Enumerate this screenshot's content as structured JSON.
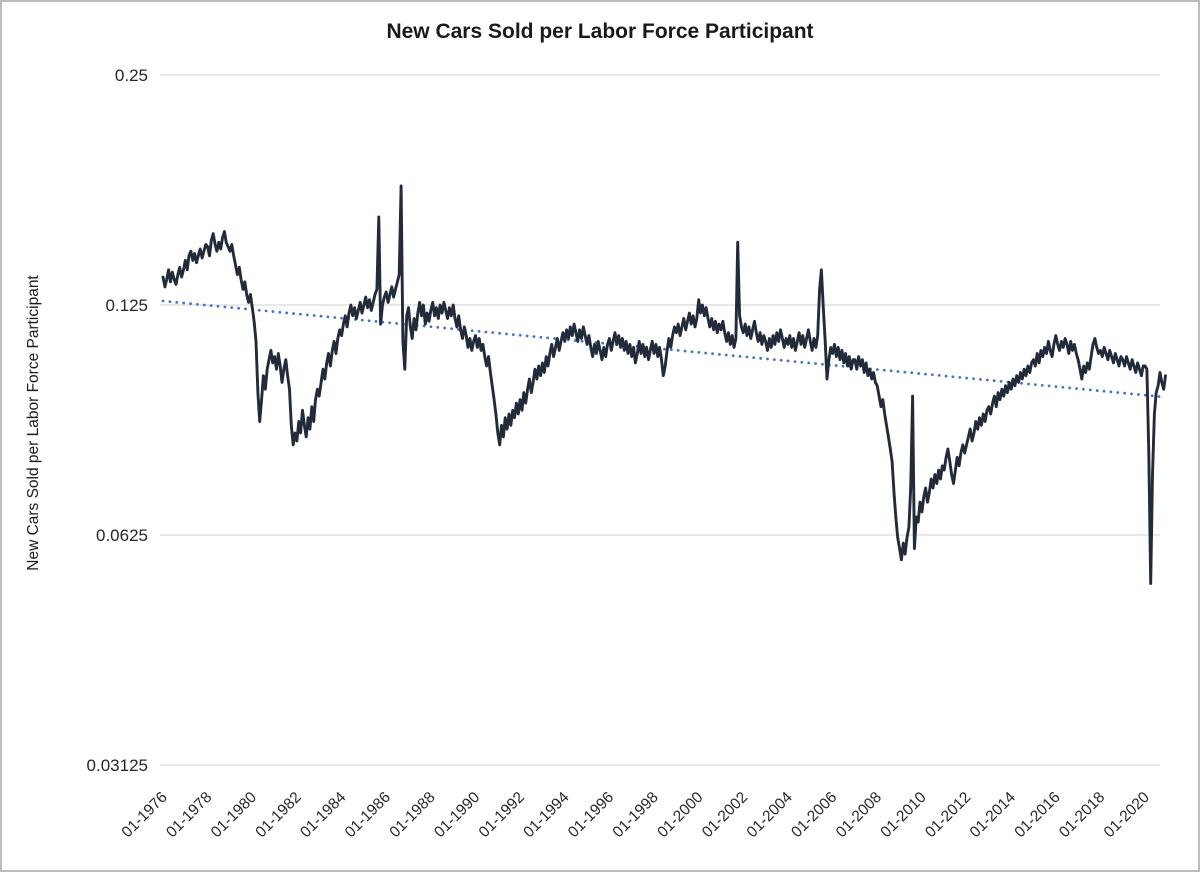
{
  "chart": {
    "title": "New Cars Sold per Labor Force Participant",
    "y_axis_title": "New Cars Sold per Labor Force Participant"
  },
  "chart_data": {
    "type": "line",
    "title": "New Cars Sold per Labor Force Participant",
    "xlabel": "",
    "ylabel": "New Cars Sold per Labor Force Participant",
    "y_scale": "log2",
    "ylim": [
      0.03125,
      0.25
    ],
    "y_ticks": [
      0.25,
      0.125,
      0.0625,
      0.03125
    ],
    "y_tick_labels": [
      "0.25",
      "0.125",
      "0.0625",
      "0.03125"
    ],
    "x_tick_labels": [
      "01-1976",
      "01-1978",
      "01-1980",
      "01-1982",
      "01-1984",
      "01-1986",
      "01-1988",
      "01-1990",
      "01-1992",
      "01-1994",
      "01-1996",
      "01-1998",
      "01-2000",
      "01-2002",
      "01-2004",
      "01-2006",
      "01-2008",
      "01-2010",
      "01-2012",
      "01-2014",
      "01-2016",
      "01-2018",
      "01-2020"
    ],
    "grid": "horizontal",
    "legend": "none",
    "series": [
      {
        "name": "new-cars-sold-per-labor-force-participant",
        "color": "#222b3a",
        "start": "01-1976",
        "interval": "monthly",
        "values": [
          0.136,
          0.132,
          0.135,
          0.139,
          0.134,
          0.138,
          0.135,
          0.133,
          0.137,
          0.14,
          0.136,
          0.139,
          0.143,
          0.139,
          0.145,
          0.147,
          0.143,
          0.146,
          0.142,
          0.145,
          0.148,
          0.144,
          0.147,
          0.15,
          0.149,
          0.145,
          0.152,
          0.155,
          0.15,
          0.147,
          0.151,
          0.148,
          0.153,
          0.156,
          0.151,
          0.149,
          0.147,
          0.15,
          0.145,
          0.141,
          0.137,
          0.14,
          0.135,
          0.131,
          0.134,
          0.129,
          0.126,
          0.129,
          0.124,
          0.119,
          0.112,
          0.096,
          0.088,
          0.094,
          0.101,
          0.097,
          0.103,
          0.106,
          0.109,
          0.105,
          0.107,
          0.103,
          0.108,
          0.104,
          0.099,
          0.103,
          0.106,
          0.101,
          0.097,
          0.087,
          0.082,
          0.085,
          0.083,
          0.088,
          0.085,
          0.091,
          0.087,
          0.084,
          0.089,
          0.086,
          0.092,
          0.088,
          0.094,
          0.097,
          0.095,
          0.099,
          0.103,
          0.1,
          0.105,
          0.108,
          0.104,
          0.109,
          0.112,
          0.108,
          0.113,
          0.116,
          0.114,
          0.118,
          0.121,
          0.117,
          0.122,
          0.125,
          0.121,
          0.124,
          0.12,
          0.123,
          0.126,
          0.122,
          0.125,
          0.128,
          0.124,
          0.127,
          0.123,
          0.126,
          0.129,
          0.131,
          0.163,
          0.118,
          0.125,
          0.128,
          0.13,
          0.126,
          0.129,
          0.132,
          0.128,
          0.131,
          0.134,
          0.137,
          0.179,
          0.112,
          0.103,
          0.121,
          0.124,
          0.117,
          0.113,
          0.12,
          0.116,
          0.122,
          0.126,
          0.121,
          0.125,
          0.118,
          0.122,
          0.119,
          0.123,
          0.126,
          0.121,
          0.124,
          0.12,
          0.125,
          0.122,
          0.126,
          0.123,
          0.12,
          0.124,
          0.121,
          0.125,
          0.12,
          0.117,
          0.121,
          0.116,
          0.113,
          0.117,
          0.114,
          0.11,
          0.113,
          0.109,
          0.112,
          0.114,
          0.11,
          0.113,
          0.109,
          0.111,
          0.107,
          0.104,
          0.107,
          0.102,
          0.098,
          0.094,
          0.09,
          0.085,
          0.082,
          0.087,
          0.084,
          0.089,
          0.086,
          0.09,
          0.087,
          0.091,
          0.089,
          0.093,
          0.09,
          0.094,
          0.091,
          0.096,
          0.093,
          0.097,
          0.1,
          0.096,
          0.099,
          0.103,
          0.1,
          0.104,
          0.101,
          0.105,
          0.102,
          0.107,
          0.104,
          0.108,
          0.111,
          0.107,
          0.11,
          0.113,
          0.109,
          0.112,
          0.115,
          0.112,
          0.116,
          0.113,
          0.117,
          0.114,
          0.118,
          0.115,
          0.112,
          0.116,
          0.113,
          0.117,
          0.114,
          0.111,
          0.114,
          0.11,
          0.107,
          0.111,
          0.108,
          0.112,
          0.109,
          0.106,
          0.11,
          0.107,
          0.111,
          0.113,
          0.109,
          0.112,
          0.115,
          0.111,
          0.114,
          0.11,
          0.113,
          0.109,
          0.112,
          0.108,
          0.111,
          0.107,
          0.11,
          0.105,
          0.108,
          0.112,
          0.108,
          0.111,
          0.107,
          0.11,
          0.106,
          0.109,
          0.112,
          0.108,
          0.111,
          0.107,
          0.11,
          0.106,
          0.101,
          0.104,
          0.109,
          0.113,
          0.11,
          0.114,
          0.117,
          0.115,
          0.118,
          0.114,
          0.117,
          0.12,
          0.116,
          0.119,
          0.122,
          0.118,
          0.121,
          0.117,
          0.12,
          0.127,
          0.122,
          0.125,
          0.121,
          0.124,
          0.12,
          0.117,
          0.12,
          0.116,
          0.119,
          0.115,
          0.118,
          0.116,
          0.119,
          0.115,
          0.112,
          0.115,
          0.111,
          0.114,
          0.11,
          0.113,
          0.151,
          0.121,
          0.117,
          0.115,
          0.118,
          0.114,
          0.117,
          0.113,
          0.116,
          0.119,
          0.115,
          0.112,
          0.115,
          0.111,
          0.114,
          0.112,
          0.109,
          0.113,
          0.11,
          0.114,
          0.111,
          0.115,
          0.112,
          0.116,
          0.113,
          0.11,
          0.113,
          0.111,
          0.114,
          0.11,
          0.113,
          0.109,
          0.112,
          0.115,
          0.111,
          0.114,
          0.11,
          0.113,
          0.116,
          0.112,
          0.109,
          0.113,
          0.11,
          0.114,
          0.131,
          0.139,
          0.124,
          0.112,
          0.1,
          0.106,
          0.11,
          0.108,
          0.111,
          0.107,
          0.11,
          0.106,
          0.109,
          0.105,
          0.108,
          0.104,
          0.107,
          0.103,
          0.106,
          0.106,
          0.103,
          0.107,
          0.104,
          0.106,
          0.102,
          0.105,
          0.101,
          0.103,
          0.1,
          0.102,
          0.099,
          0.098,
          0.095,
          0.092,
          0.094,
          0.09,
          0.087,
          0.084,
          0.081,
          0.078,
          0.071,
          0.066,
          0.062,
          0.06,
          0.058,
          0.061,
          0.059,
          0.062,
          0.064,
          0.072,
          0.095,
          0.06,
          0.066,
          0.065,
          0.069,
          0.067,
          0.07,
          0.072,
          0.069,
          0.071,
          0.074,
          0.072,
          0.075,
          0.073,
          0.076,
          0.074,
          0.077,
          0.076,
          0.079,
          0.081,
          0.078,
          0.075,
          0.073,
          0.076,
          0.079,
          0.077,
          0.08,
          0.082,
          0.08,
          0.082,
          0.084,
          0.086,
          0.083,
          0.085,
          0.088,
          0.086,
          0.089,
          0.087,
          0.09,
          0.088,
          0.091,
          0.092,
          0.09,
          0.093,
          0.095,
          0.092,
          0.096,
          0.094,
          0.097,
          0.095,
          0.098,
          0.096,
          0.099,
          0.097,
          0.1,
          0.098,
          0.101,
          0.099,
          0.102,
          0.1,
          0.103,
          0.101,
          0.104,
          0.102,
          0.105,
          0.106,
          0.104,
          0.108,
          0.105,
          0.109,
          0.107,
          0.11,
          0.108,
          0.112,
          0.109,
          0.107,
          0.111,
          0.114,
          0.111,
          0.109,
          0.112,
          0.11,
          0.113,
          0.111,
          0.108,
          0.112,
          0.109,
          0.111,
          0.108,
          0.106,
          0.103,
          0.1,
          0.104,
          0.102,
          0.105,
          0.103,
          0.107,
          0.111,
          0.113,
          0.11,
          0.108,
          0.109,
          0.107,
          0.11,
          0.108,
          0.106,
          0.109,
          0.107,
          0.105,
          0.108,
          0.106,
          0.104,
          0.107,
          0.106,
          0.104,
          0.107,
          0.105,
          0.103,
          0.106,
          0.104,
          0.102,
          0.105,
          0.103,
          0.101,
          0.104,
          0.104,
          0.103,
          0.08,
          0.054,
          0.075,
          0.09,
          0.096,
          0.098,
          0.102,
          0.099,
          0.097,
          0.101
        ]
      }
    ],
    "trend": {
      "name": "linear-trend",
      "style": "dotted",
      "color": "#4472c4",
      "start_value": 0.1265,
      "end_value": 0.0947
    },
    "colors": {
      "series_line": "#222b3a",
      "trend_line": "#4472c4",
      "gridline": "#d9d9d9",
      "frame_border": "#bdbdbd",
      "text": "#262626"
    }
  }
}
